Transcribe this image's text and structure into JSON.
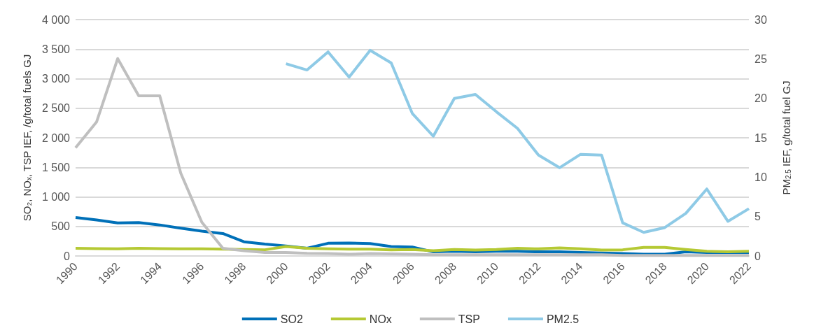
{
  "chart_data": {
    "type": "line",
    "ylabel": "SO₂, NOₓ, TSP IEF, /g/total fuels GJ",
    "y2label": "PM$_{2.5}$ IEF, g/total fuel GJ",
    "categories": [
      "1990",
      null,
      "1992",
      null,
      "1994",
      null,
      "1996",
      null,
      "1998",
      null,
      "2000",
      null,
      "2002",
      null,
      "2004",
      null,
      "2006",
      null,
      "2008",
      null,
      "2010",
      null,
      "2012",
      null,
      "2014",
      null,
      "2016",
      null,
      "2018",
      null,
      "2020",
      null,
      "2022"
    ],
    "series": [
      {
        "name": "SO2",
        "color": "#0070b8",
        "values": [
          650,
          610,
          560,
          565,
          525,
          470,
          420,
          380,
          240,
          200,
          170,
          130,
          215,
          220,
          210,
          160,
          150,
          70,
          80,
          70,
          80,
          80,
          70,
          70,
          60,
          50,
          40,
          30,
          30,
          70,
          60,
          60,
          60
        ]
      },
      {
        "name": "NOx",
        "color": "#b5c934",
        "values": [
          130,
          125,
          120,
          130,
          125,
          120,
          120,
          115,
          110,
          105,
          160,
          130,
          120,
          115,
          115,
          105,
          110,
          90,
          110,
          100,
          110,
          130,
          120,
          135,
          120,
          100,
          105,
          145,
          145,
          110,
          80,
          70,
          80
        ]
      },
      {
        "name": "TSP",
        "color": "#bfbfbf",
        "values": [
          1830,
          2270,
          3340,
          2710,
          2710,
          1400,
          570,
          130,
          90,
          60,
          60,
          45,
          40,
          30,
          40,
          35,
          30,
          20,
          20,
          20,
          20,
          20,
          20,
          20,
          20,
          20,
          10,
          10,
          10,
          10,
          10,
          10,
          10
        ]
      },
      {
        "name": "PM2.5",
        "color": "#8ecae6",
        "axis": "y2",
        "values": [
          null,
          null,
          null,
          null,
          null,
          null,
          null,
          null,
          null,
          null,
          24.4,
          23.6,
          25.9,
          22.7,
          26.1,
          24.5,
          18.1,
          15.2,
          20.0,
          20.5,
          18.3,
          16.2,
          12.8,
          11.2,
          12.9,
          12.8,
          4.2,
          3.0,
          3.6,
          5.4,
          8.5,
          4.4,
          6.0
        ]
      }
    ],
    "ylim": [
      0,
      4000
    ],
    "yticks": [
      0,
      500,
      {
        "value": 1000,
        "label": "1 000"
      },
      {
        "value": 1500,
        "label": "1 500"
      },
      {
        "value": 2000,
        "label": "2 000"
      },
      {
        "value": 2500,
        "label": "2 500"
      },
      {
        "value": 3000,
        "label": "3 000"
      },
      {
        "value": 3500,
        "label": "3 500"
      },
      {
        "value": 4000,
        "label": "4 000"
      }
    ],
    "y2lim": [
      0,
      30
    ],
    "y2ticks": [
      0,
      5,
      10,
      15,
      20,
      25,
      30
    ],
    "grid": "y",
    "legend": "bottom",
    "marker": "none",
    "line_style": "solid"
  }
}
